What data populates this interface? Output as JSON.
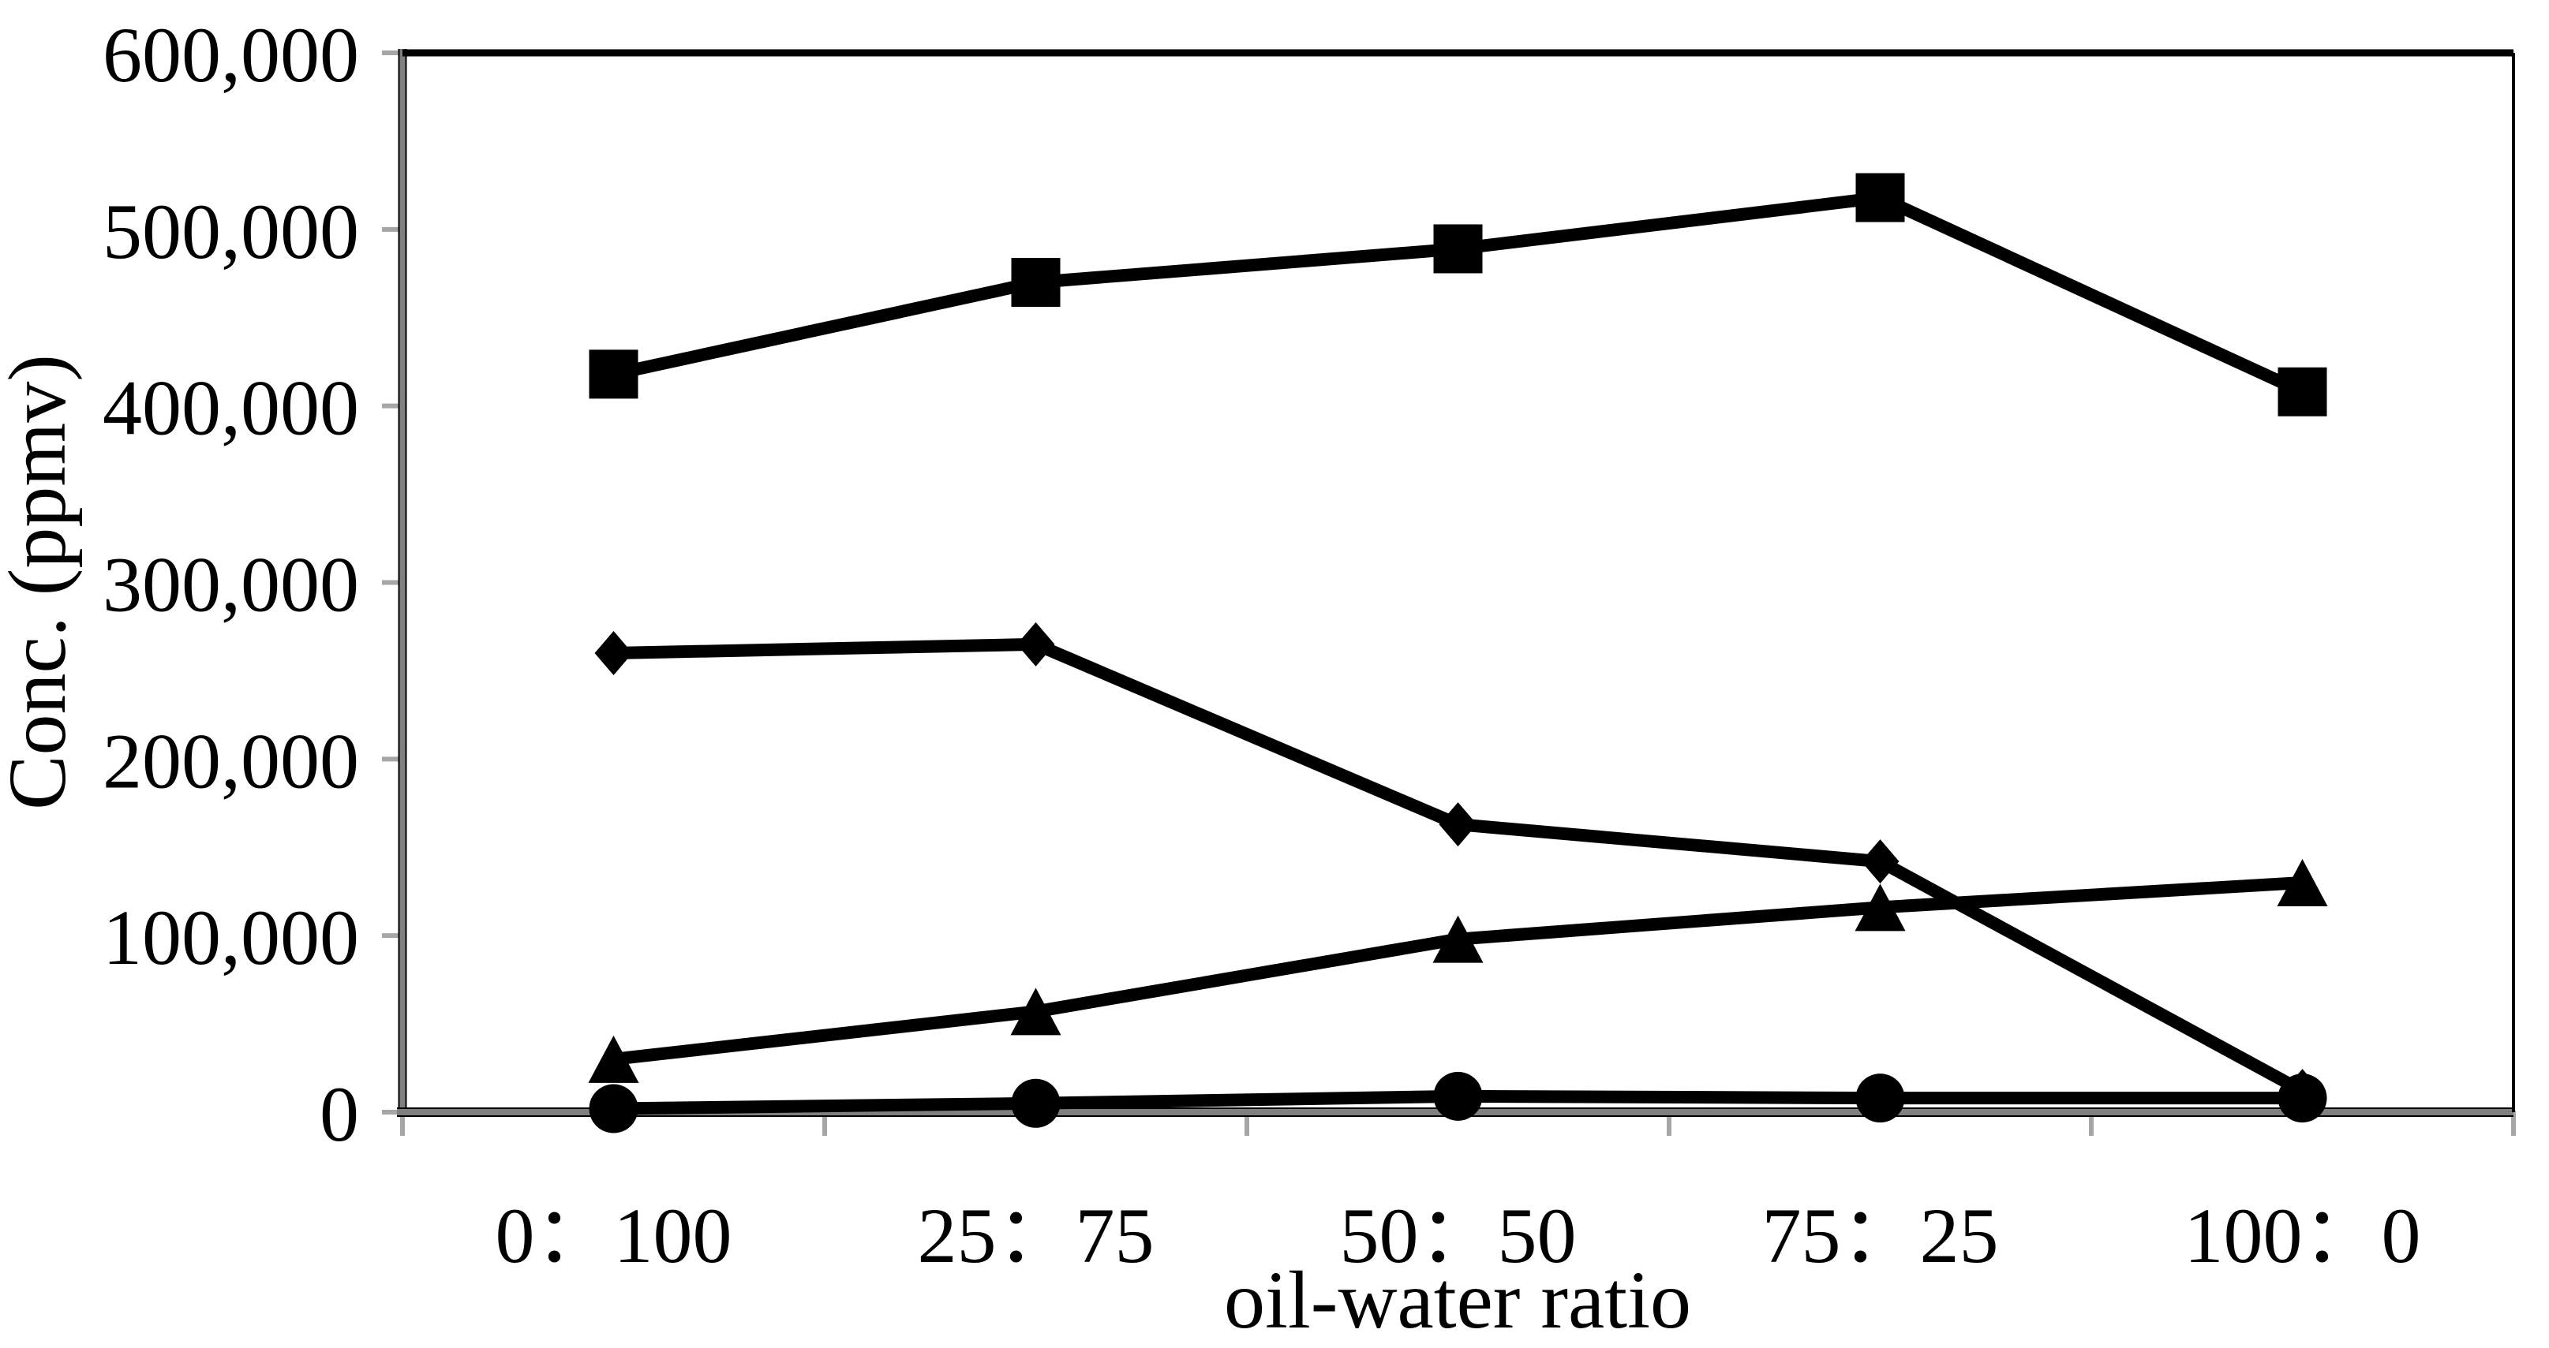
{
  "chart_data": {
    "type": "line",
    "title": "",
    "xlabel": "oil-water ratio",
    "ylabel": "Conc. (ppmv)",
    "categories": [
      "0：100",
      "25：75",
      "50：50",
      "75：25",
      "100：0"
    ],
    "y_ticks": [
      {
        "label": "0",
        "value": 0
      },
      {
        "label": "100,000",
        "value": 100000
      },
      {
        "label": "200,000",
        "value": 200000
      },
      {
        "label": "300,000",
        "value": 300000
      },
      {
        "label": "400,000",
        "value": 400000
      },
      {
        "label": "500,000",
        "value": 500000
      },
      {
        "label": "600,000",
        "value": 600000
      }
    ],
    "ylim": [
      0,
      600000
    ],
    "grid": false,
    "legend": "none",
    "series": [
      {
        "name": "square",
        "marker": "square",
        "values": [
          418000,
          470000,
          489000,
          518000,
          408000
        ]
      },
      {
        "name": "diamond",
        "marker": "diamond",
        "values": [
          260000,
          265000,
          163000,
          142000,
          12000
        ]
      },
      {
        "name": "triangle",
        "marker": "triangle",
        "values": [
          30000,
          57000,
          98000,
          116000,
          130000
        ]
      },
      {
        "name": "circle",
        "marker": "circle",
        "values": [
          2000,
          5000,
          9000,
          8000,
          8000
        ]
      }
    ],
    "colors": {
      "series": "#000000",
      "axis_gray": "#808080",
      "tick_gray": "#a6a6a6",
      "border_black": "#000000",
      "background": "#ffffff",
      "text": "#000000"
    }
  }
}
